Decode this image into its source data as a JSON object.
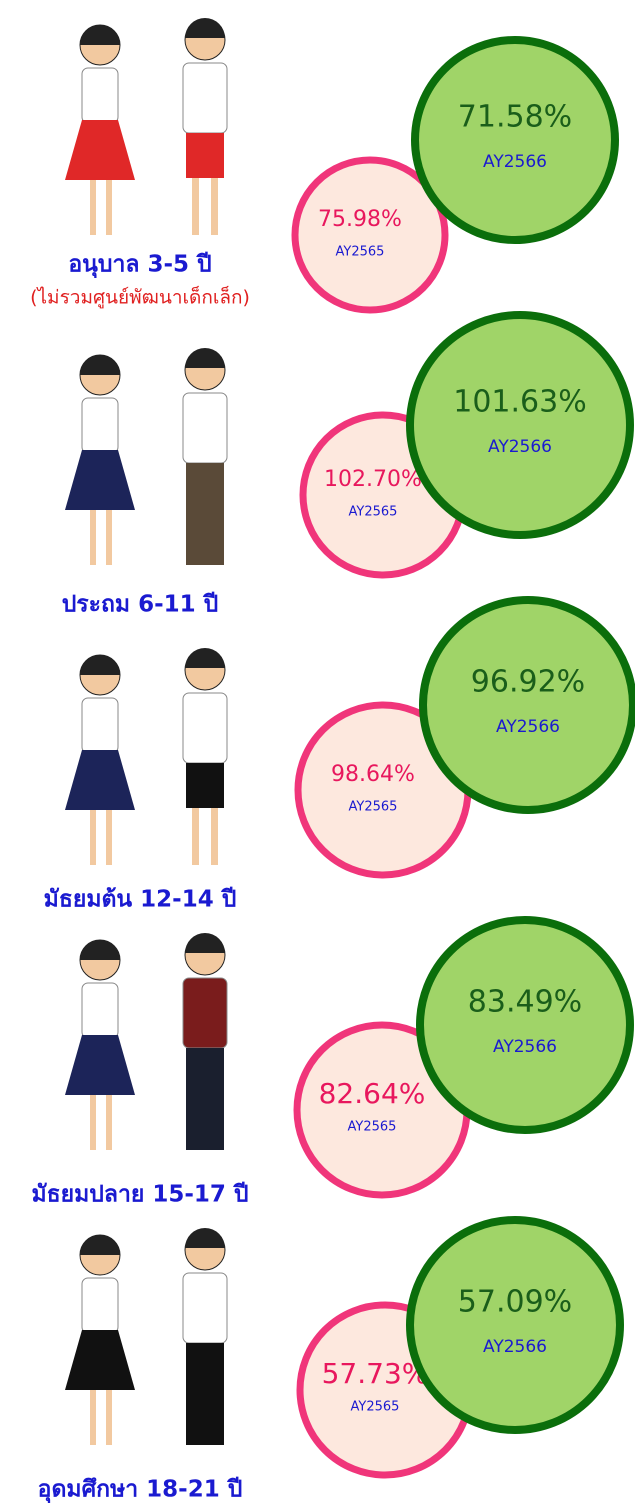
{
  "sections": [
    {
      "label": "อนุบาล 3-5 ปี",
      "sublabel": "(ไม่รวมศูนย์พัฒนาเด็กเล็ก)",
      "previous": {
        "value": "75.98%",
        "year": "AY2565"
      },
      "current": {
        "value": "71.58%",
        "year": "AY2566"
      }
    },
    {
      "label": "ประถม 6-11 ปี",
      "previous": {
        "value": "102.70%",
        "year": "AY2565"
      },
      "current": {
        "value": "101.63%",
        "year": "AY2566"
      }
    },
    {
      "label": "มัธยมต้น 12-14 ปี",
      "previous": {
        "value": "98.64%",
        "year": "AY2565"
      },
      "current": {
        "value": "96.92%",
        "year": "AY2566"
      }
    },
    {
      "label": "มัธยมปลาย 15-17 ปี",
      "previous": {
        "value": "82.64%",
        "year": "AY2565"
      },
      "current": {
        "value": "83.49%",
        "year": "AY2566"
      }
    },
    {
      "label": "อุดมศึกษา 18-21 ปี",
      "previous": {
        "value": "57.73%",
        "year": "AY2565"
      },
      "current": {
        "value": "57.09%",
        "year": "AY2566"
      }
    }
  ]
}
